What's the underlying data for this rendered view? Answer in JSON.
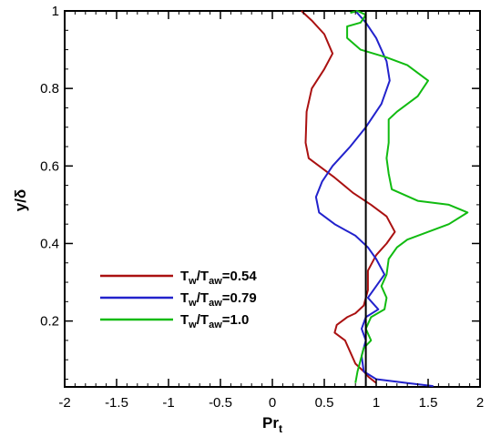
{
  "chart_data": {
    "type": "line",
    "xlim": [
      -2,
      2
    ],
    "ylim": [
      0.03,
      1.0
    ],
    "x_ticks": [
      "-2",
      "-1.5",
      "-1",
      "-0.5",
      "0",
      "0.5",
      "1",
      "1.5",
      "2"
    ],
    "x_tick_values": [
      -2,
      -1.5,
      -1,
      -0.5,
      0,
      0.5,
      1,
      1.5,
      2
    ],
    "y_ticks": [
      "0.2",
      "0.4",
      "0.6",
      "0.8",
      "1"
    ],
    "y_tick_values": [
      0.2,
      0.4,
      0.6,
      0.8,
      1.0
    ],
    "xlabel": {
      "main": "Pr",
      "sub": "t"
    },
    "ylabel": "y/δ",
    "grid": false,
    "legend_position": "left-lower",
    "reference_line": {
      "x": 0.9,
      "color": "#000000"
    },
    "series": [
      {
        "label_parts": [
          "T",
          "w",
          "/T",
          "aw",
          "=0.54"
        ],
        "color": "#aa1111",
        "points": [
          [
            0.28,
            1.0
          ],
          [
            0.38,
            0.975
          ],
          [
            0.5,
            0.94
          ],
          [
            0.58,
            0.89
          ],
          [
            0.5,
            0.85
          ],
          [
            0.38,
            0.8
          ],
          [
            0.33,
            0.74
          ],
          [
            0.32,
            0.66
          ],
          [
            0.35,
            0.62
          ],
          [
            0.45,
            0.6
          ],
          [
            0.6,
            0.57
          ],
          [
            0.78,
            0.53
          ],
          [
            0.95,
            0.5
          ],
          [
            1.1,
            0.47
          ],
          [
            1.18,
            0.43
          ],
          [
            1.1,
            0.4
          ],
          [
            1.0,
            0.37
          ],
          [
            0.92,
            0.33
          ],
          [
            0.92,
            0.28
          ],
          [
            0.88,
            0.24
          ],
          [
            0.8,
            0.22
          ],
          [
            0.72,
            0.21
          ],
          [
            0.62,
            0.19
          ],
          [
            0.6,
            0.17
          ],
          [
            0.7,
            0.15
          ],
          [
            0.75,
            0.12
          ],
          [
            0.8,
            0.09
          ],
          [
            0.88,
            0.07
          ],
          [
            0.93,
            0.055
          ],
          [
            1.0,
            0.04
          ]
        ]
      },
      {
        "label_parts": [
          "T",
          "w",
          "/T",
          "aw",
          "=0.79"
        ],
        "color": "#2222cc",
        "points": [
          [
            0.8,
            1.0
          ],
          [
            0.9,
            0.97
          ],
          [
            1.0,
            0.93
          ],
          [
            1.1,
            0.87
          ],
          [
            1.13,
            0.82
          ],
          [
            1.05,
            0.76
          ],
          [
            0.9,
            0.7
          ],
          [
            0.75,
            0.65
          ],
          [
            0.58,
            0.6
          ],
          [
            0.48,
            0.56
          ],
          [
            0.42,
            0.52
          ],
          [
            0.45,
            0.48
          ],
          [
            0.6,
            0.45
          ],
          [
            0.8,
            0.42
          ],
          [
            0.92,
            0.39
          ],
          [
            1.0,
            0.36
          ],
          [
            1.08,
            0.32
          ],
          [
            1.0,
            0.29
          ],
          [
            0.92,
            0.26
          ],
          [
            1.02,
            0.23
          ],
          [
            0.9,
            0.21
          ],
          [
            0.86,
            0.18
          ],
          [
            0.9,
            0.15
          ],
          [
            0.86,
            0.11
          ],
          [
            0.88,
            0.07
          ],
          [
            1.0,
            0.05
          ],
          [
            1.3,
            0.04
          ],
          [
            1.55,
            0.032
          ]
        ]
      },
      {
        "label_parts": [
          "T",
          "w",
          "/T",
          "aw",
          "=1.0"
        ],
        "color": "#11bb11",
        "points": [
          [
            0.75,
            0.995
          ],
          [
            0.82,
            1.0
          ],
          [
            0.9,
            0.99
          ],
          [
            0.85,
            0.97
          ],
          [
            0.72,
            0.96
          ],
          [
            0.72,
            0.93
          ],
          [
            0.85,
            0.9
          ],
          [
            1.1,
            0.88
          ],
          [
            1.3,
            0.86
          ],
          [
            1.5,
            0.82
          ],
          [
            1.4,
            0.78
          ],
          [
            1.2,
            0.74
          ],
          [
            1.12,
            0.72
          ],
          [
            1.12,
            0.66
          ],
          [
            1.1,
            0.62
          ],
          [
            1.12,
            0.58
          ],
          [
            1.15,
            0.54
          ],
          [
            1.4,
            0.51
          ],
          [
            1.7,
            0.5
          ],
          [
            1.88,
            0.48
          ],
          [
            1.7,
            0.45
          ],
          [
            1.5,
            0.43
          ],
          [
            1.3,
            0.41
          ],
          [
            1.2,
            0.39
          ],
          [
            1.12,
            0.36
          ],
          [
            1.1,
            0.32
          ],
          [
            1.05,
            0.29
          ],
          [
            1.1,
            0.26
          ],
          [
            1.08,
            0.23
          ],
          [
            0.95,
            0.21
          ],
          [
            0.9,
            0.18
          ],
          [
            0.95,
            0.15
          ],
          [
            0.88,
            0.13
          ],
          [
            0.85,
            0.1
          ],
          [
            0.82,
            0.07
          ],
          [
            0.8,
            0.04
          ]
        ]
      }
    ]
  }
}
